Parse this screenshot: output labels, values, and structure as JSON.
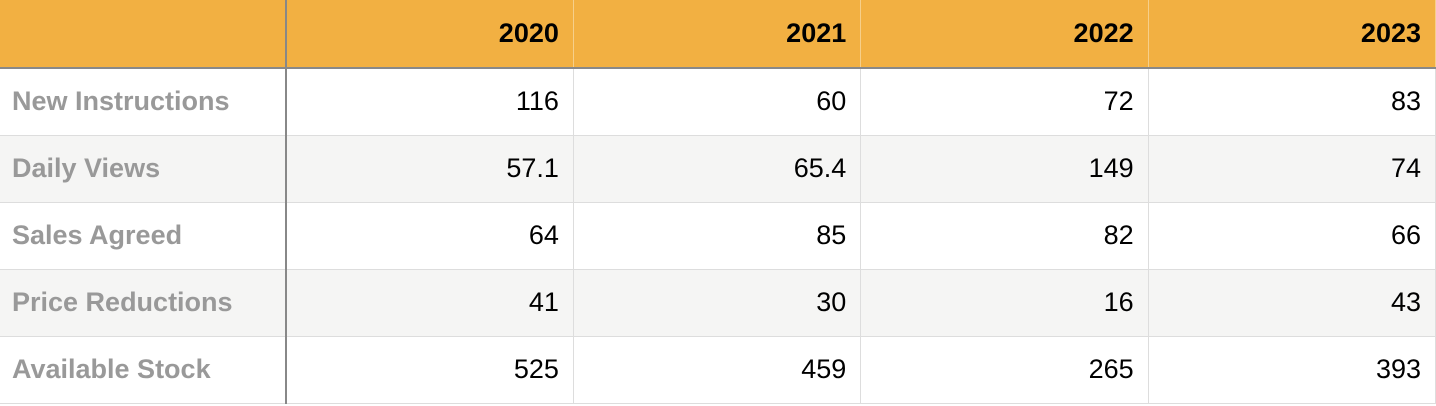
{
  "table": {
    "columns": [
      "2020",
      "2021",
      "2022",
      "2023"
    ],
    "rows": [
      {
        "label": "New Instructions",
        "values": [
          "116",
          "60",
          "72",
          "83"
        ]
      },
      {
        "label": "Daily Views",
        "values": [
          "57.1",
          "65.4",
          "149",
          "74"
        ]
      },
      {
        "label": "Sales Agreed",
        "values": [
          "64",
          "85",
          "82",
          "66"
        ]
      },
      {
        "label": "Price Reductions",
        "values": [
          "41",
          "30",
          "16",
          "43"
        ]
      },
      {
        "label": "Available Stock",
        "values": [
          "525",
          "459",
          "265",
          "393"
        ]
      }
    ]
  }
}
